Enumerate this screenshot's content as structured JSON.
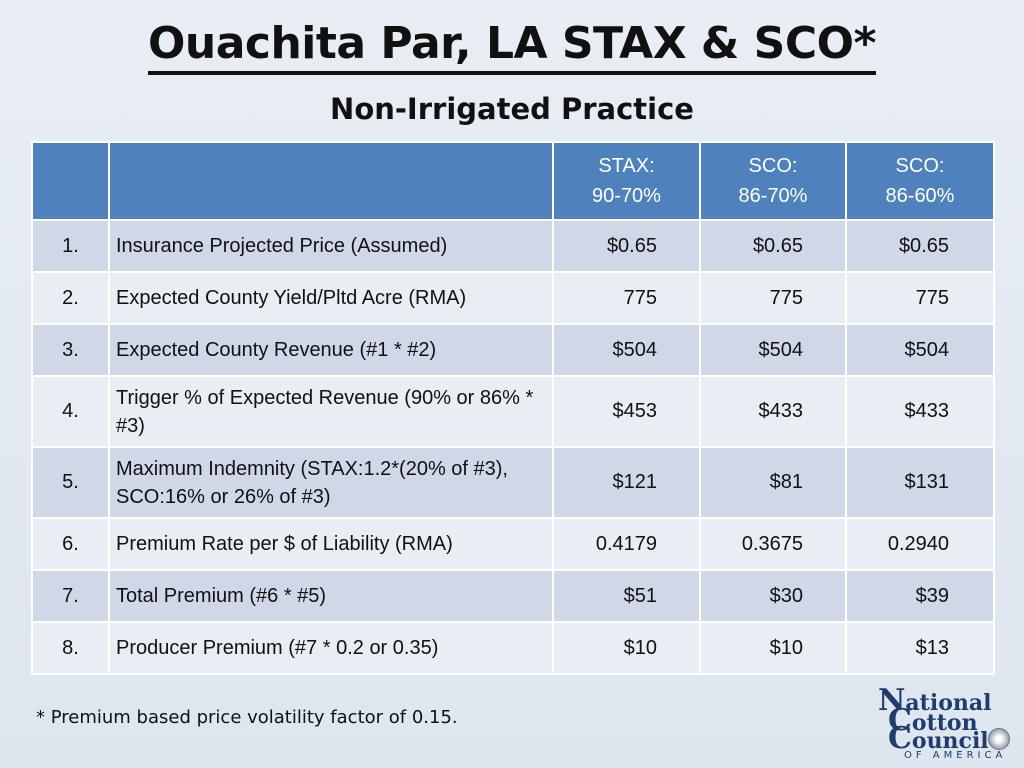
{
  "title": "Ouachita Par, LA STAX & SCO*",
  "subtitle": "Non-Irrigated Practice",
  "table": {
    "headers": [
      {
        "line1": "STAX:",
        "line2": "90-70%"
      },
      {
        "line1": "SCO:",
        "line2": "86-70%"
      },
      {
        "line1": "SCO:",
        "line2": "86-60%"
      }
    ],
    "rows": [
      {
        "num": "1.",
        "desc": "Insurance Projected Price (Assumed)",
        "v1": "$0.65",
        "v2": "$0.65",
        "v3": "$0.65"
      },
      {
        "num": "2.",
        "desc": "Expected County Yield/Pltd Acre (RMA)",
        "v1": "775",
        "v2": "775",
        "v3": "775"
      },
      {
        "num": "3.",
        "desc": "Expected County Revenue (#1 * #2)",
        "v1": "$504",
        "v2": "$504",
        "v3": "$504"
      },
      {
        "num": "4.",
        "desc": "Trigger % of Expected Revenue (90% or 86% * #3)",
        "v1": "$453",
        "v2": "$433",
        "v3": "$433"
      },
      {
        "num": "5.",
        "desc": "Maximum Indemnity (STAX:1.2*(20% of #3), SCO:16% or 26% of #3)",
        "v1": "$121",
        "v2": "$81",
        "v3": "$131"
      },
      {
        "num": "6.",
        "desc": "Premium Rate per $ of Liability (RMA)",
        "v1": "0.4179",
        "v2": "0.3675",
        "v3": "0.2940"
      },
      {
        "num": "7.",
        "desc": "Total Premium (#6 * #5)",
        "v1": "$51",
        "v2": "$30",
        "v3": "$39"
      },
      {
        "num": "8.",
        "desc": "Producer Premium (#7 * 0.2 or 0.35)",
        "v1": "$10",
        "v2": "$10",
        "v3": "$13"
      }
    ]
  },
  "footnote": "* Premium based price volatility factor of 0.15.",
  "logo": {
    "n": "N",
    "ational": "ational",
    "c1": "C",
    "otton": "otton",
    "c2": "C",
    "ouncil": "ouncil",
    "sub": "OF AMERICA"
  }
}
